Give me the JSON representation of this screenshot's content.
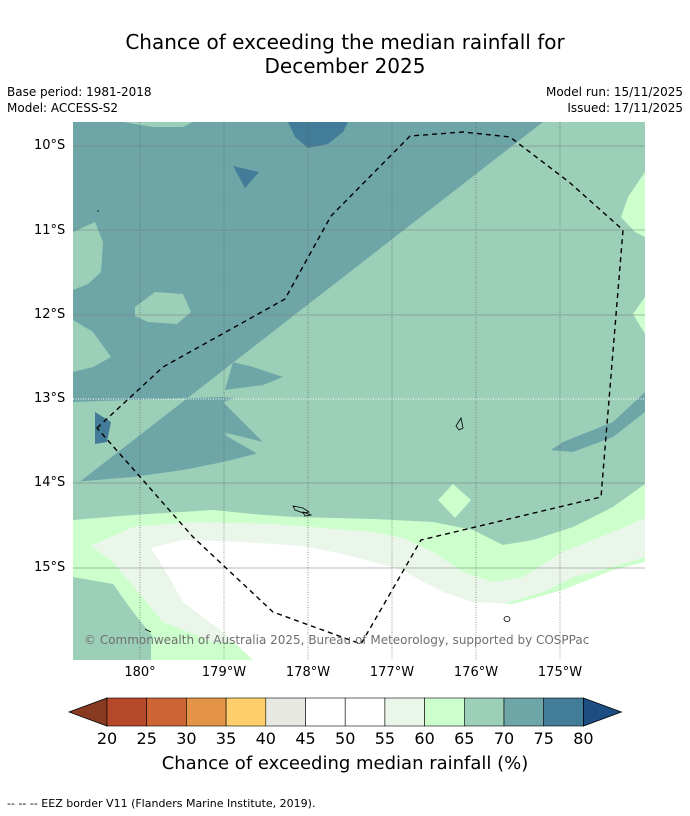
{
  "title": {
    "line1": "Chance of exceeding the median rainfall for",
    "line2": "December 2025"
  },
  "meta": {
    "base_period": "Base period: 1981-2018",
    "model": "Model: ACCESS-S2",
    "model_run": "Model run: 15/11/2025",
    "issued": "Issued: 17/11/2025"
  },
  "axes": {
    "lat_labels": [
      "10°S",
      "11°S",
      "12°S",
      "13°S",
      "14°S",
      "15°S"
    ],
    "lon_labels": [
      "180°",
      "179°W",
      "178°W",
      "177°W",
      "176°W",
      "175°W"
    ]
  },
  "credit": "© Commonwealth of Australia 2025, Bureau of Meteorology, supported by COSPPac",
  "colorbar": {
    "ticks": [
      "20",
      "25",
      "30",
      "35",
      "40",
      "45",
      "50",
      "55",
      "60",
      "65",
      "70",
      "75",
      "80"
    ],
    "colors": [
      "#b5492a",
      "#cd6434",
      "#e39446",
      "#fece6b",
      "#e8e8e2",
      "#ffffff",
      "#ffffff",
      "#ebf6ea",
      "#ccffcc",
      "#9ccfb8",
      "#6ea6a8",
      "#437c98"
    ],
    "under_color": "#8b3a22",
    "over_color": "#1c4e82",
    "label": "Chance of exceeding median rainfall (%)"
  },
  "legend_note": "--  --  -- EEZ border V11 (Flanders Marine Institute, 2019)."
}
